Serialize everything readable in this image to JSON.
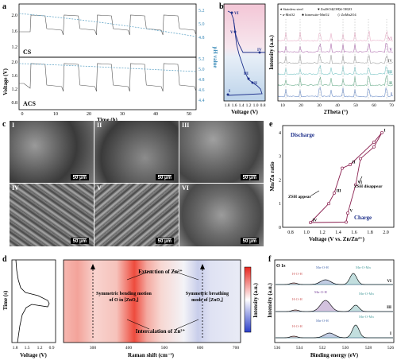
{
  "panels": {
    "a": {
      "letter": "a",
      "ylabel_left": "Voltage (V)",
      "ylabel_right": "pH value",
      "xlabel": "Time (h)",
      "label_top": "CS",
      "label_bottom": "ACS",
      "xticks": [
        "0",
        "10",
        "20",
        "30",
        "40",
        "50"
      ],
      "yticks_left_top": [
        "1.2",
        "1.6",
        "2.0"
      ],
      "yticks_left_bottom": [
        "0.8",
        "1.2",
        "1.6",
        "2.0"
      ],
      "yticks_right_top": [
        "4.8",
        "5.0",
        "5.2"
      ],
      "yticks_right_bottom": [
        "4.4",
        "4.6",
        "4.8",
        "5.0",
        "5.2"
      ]
    },
    "b": {
      "letter": "b",
      "xlabel_left": "Voltage (V)",
      "xticks_left": [
        "1.8",
        "1.6",
        "1.4",
        "1.2",
        "1.0",
        "0.8"
      ],
      "points": [
        "I",
        "II",
        "III",
        "IV",
        "V",
        "VI"
      ],
      "xlabel_right": "2Theta (°)",
      "ylabel_right": "Intensity (a.u.)",
      "xticks_right": [
        "10",
        "20",
        "30",
        "40",
        "50",
        "60",
        "70"
      ],
      "legend": [
        "Stainless steel",
        "Zn4SO4(OH)6·5H2O",
        "α-MnO2",
        "birnessite-MnO2",
        "ZnMn2O4"
      ],
      "legend_symbols": [
        "♦",
        "♥",
        "•",
        "♣",
        "◇"
      ],
      "pattern_labels": [
        "VI",
        "V",
        "IV",
        "III",
        "II",
        "I"
      ],
      "pattern_colors": [
        "#e8b0c8",
        "#b070b0",
        "#a0a0a0",
        "#80c8c8",
        "#70b090",
        "#7090c8"
      ]
    },
    "c": {
      "letter": "c",
      "tiles": [
        "I",
        "II",
        "III",
        "IV",
        "V",
        "VI"
      ],
      "scalebar": "50 μm"
    },
    "d": {
      "letter": "d",
      "ylabel_left": "Time (s)",
      "xlabel_left": "Voltage (V)",
      "xticks_left": [
        "1.8",
        "1.5",
        "1.2",
        "0.9"
      ],
      "xlabel_right": "Raman shift (cm⁻¹)",
      "xticks_right": [
        "300",
        "400",
        "500",
        "600",
        "700"
      ],
      "colorbar_label": "Intensity (a.u.)",
      "annotations": [
        "Extraction of Zn²⁺",
        "Intercalation of Zn²⁺",
        "Symmetric bending motion of O in [ZnO₄]",
        "Symmetric breathing mode of [ZnO₄]"
      ]
    },
    "e": {
      "letter": "e",
      "xlabel": "Voltage (V vs. Zn/Zn²⁺)",
      "ylabel": "Mn/Zn ratio",
      "xticks": [
        "0.8",
        "1.0",
        "1.2",
        "1.4",
        "1.6",
        "1.8",
        "2.0"
      ],
      "yticks": [
        "0",
        "1",
        "2",
        "3",
        "4"
      ],
      "discharge_label": "Discharge",
      "charge_label": "Charge",
      "zsh_appear": "ZSH appear",
      "zsh_disappear": "ZSH disappear",
      "chart_data": {
        "type": "line",
        "points": [
          {
            "label": "I",
            "x": 1.95,
            "y": 4.0
          },
          {
            "label": "II",
            "x": 1.55,
            "y": 2.65
          },
          {
            "label": "III",
            "x": 1.35,
            "y": 1.45
          },
          {
            "label": "IV",
            "x": 1.05,
            "y": 0.2
          },
          {
            "label": "V",
            "x": 1.52,
            "y": 0.6
          },
          {
            "label": "VI",
            "x": 1.62,
            "y": 1.8
          }
        ],
        "extra_points": [
          {
            "x": 1.28,
            "y": 1.0
          },
          {
            "x": 1.45,
            "y": 2.5
          },
          {
            "x": 1.68,
            "y": 2.9
          },
          {
            "x": 1.85,
            "y": 3.6
          },
          {
            "x": 1.5,
            "y": 0.22
          },
          {
            "x": 1.85,
            "y": 3.4
          }
        ],
        "xlim": [
          0.7,
          2.1
        ],
        "ylim": [
          0,
          4.3
        ]
      }
    },
    "f": {
      "letter": "f",
      "title": "O 1s",
      "xlabel": "Binding energy (eV)",
      "ylabel": "Intensity (a.u.)",
      "xticks": [
        "536",
        "534",
        "532",
        "530",
        "528",
        "526"
      ],
      "labels": [
        "VI",
        "III",
        "I"
      ],
      "peak_labels": [
        "H-O-H",
        "Mn-O-H",
        "Mn-O-Mn"
      ]
    }
  }
}
